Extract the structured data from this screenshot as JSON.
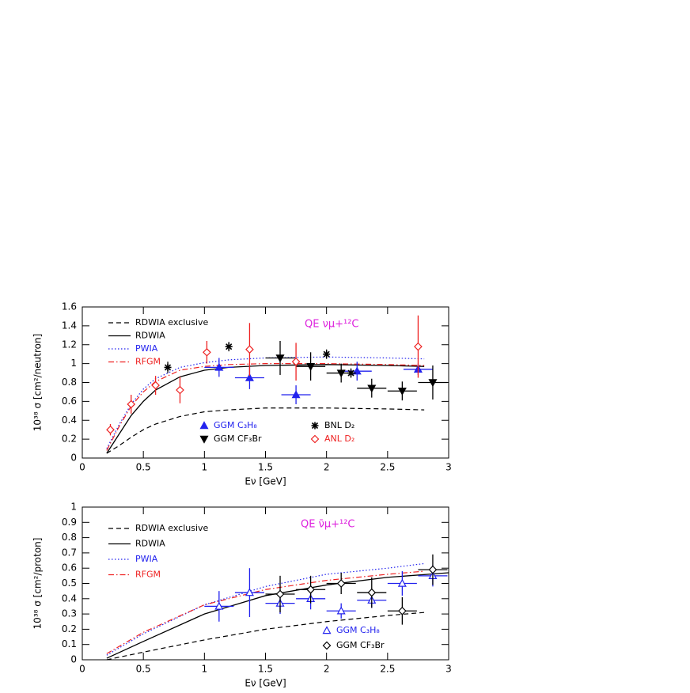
{
  "chart_data": [
    {
      "type": "line",
      "annotation": "QE νμ+¹²C",
      "xlabel": "Eν [GeV]",
      "ylabel": "10³⁸ σ [cm²/neutron]",
      "xlim": [
        0,
        3
      ],
      "ylim": [
        0,
        1.6
      ],
      "xticks": [
        0,
        0.5,
        1,
        1.5,
        2,
        2.5,
        3
      ],
      "yticks": [
        0,
        0.2,
        0.4,
        0.6,
        0.8,
        1,
        1.2,
        1.4,
        1.6
      ],
      "series": [
        {
          "name": "RDWIA exclusive",
          "kind": "line",
          "style": "dashed",
          "color": "#000000",
          "x": [
            0.2,
            0.3,
            0.4,
            0.5,
            0.6,
            0.8,
            1.0,
            1.2,
            1.5,
            2.0,
            2.5,
            2.8
          ],
          "values": [
            0.05,
            0.13,
            0.22,
            0.3,
            0.36,
            0.44,
            0.49,
            0.51,
            0.53,
            0.53,
            0.52,
            0.51
          ]
        },
        {
          "name": "RDWIA",
          "kind": "line",
          "style": "solid",
          "color": "#000000",
          "x": [
            0.2,
            0.3,
            0.4,
            0.5,
            0.6,
            0.8,
            1.0,
            1.2,
            1.5,
            2.0,
            2.5,
            2.8
          ],
          "values": [
            0.05,
            0.25,
            0.45,
            0.6,
            0.72,
            0.86,
            0.93,
            0.96,
            0.98,
            0.99,
            0.98,
            0.97
          ]
        },
        {
          "name": "PWIA",
          "kind": "line",
          "style": "dotted",
          "color": "#2222ee",
          "x": [
            0.2,
            0.3,
            0.4,
            0.5,
            0.6,
            0.8,
            1.0,
            1.2,
            1.5,
            2.0,
            2.5,
            2.8
          ],
          "values": [
            0.1,
            0.35,
            0.57,
            0.73,
            0.84,
            0.96,
            1.01,
            1.04,
            1.06,
            1.07,
            1.06,
            1.05
          ]
        },
        {
          "name": "RFGM",
          "kind": "line",
          "style": "dashdot",
          "color": "#ee2222",
          "x": [
            0.2,
            0.3,
            0.4,
            0.5,
            0.6,
            0.8,
            1.0,
            1.2,
            1.5,
            2.0,
            2.5,
            2.8
          ],
          "values": [
            0.08,
            0.33,
            0.55,
            0.7,
            0.81,
            0.93,
            0.97,
            0.99,
            1.0,
            1.0,
            0.99,
            0.98
          ]
        },
        {
          "name": "GGM C₃H₈",
          "kind": "points",
          "marker": "triangle-up-filled",
          "color": "#2222ee",
          "x": [
            1.12,
            1.37,
            1.75,
            2.25,
            2.75
          ],
          "values": [
            0.96,
            0.85,
            0.67,
            0.92,
            0.94
          ],
          "errors": [
            0.1,
            0.12,
            0.1,
            0.1,
            0.06
          ],
          "xerrors": [
            0.12,
            0.12,
            0.12,
            0.12,
            0.12
          ]
        },
        {
          "name": "GGM CF₃Br",
          "kind": "points",
          "marker": "triangle-down-filled",
          "color": "#000000",
          "x": [
            1.62,
            1.87,
            2.12,
            2.37,
            2.62,
            2.87
          ],
          "values": [
            1.06,
            0.97,
            0.9,
            0.74,
            0.71,
            0.8
          ],
          "errors": [
            0.18,
            0.15,
            0.1,
            0.1,
            0.1,
            0.18
          ],
          "xerrors": [
            0.12,
            0.12,
            0.12,
            0.12,
            0.12,
            0.12
          ]
        },
        {
          "name": "BNL D₂",
          "kind": "points",
          "marker": "star",
          "color": "#000000",
          "x": [
            0.7,
            1.2,
            2.0,
            2.2
          ],
          "values": [
            0.96,
            1.18,
            1.1,
            0.9
          ],
          "errors": [
            0.06,
            0.05,
            0.05,
            0.05
          ]
        },
        {
          "name": "ANL D₂",
          "kind": "points",
          "marker": "diamond-open",
          "color": "#ee2222",
          "x": [
            0.23,
            0.4,
            0.6,
            0.8,
            1.02,
            1.37,
            1.75,
            2.75
          ],
          "values": [
            0.3,
            0.57,
            0.77,
            0.72,
            1.12,
            1.15,
            1.02,
            1.18
          ],
          "errors": [
            0.06,
            0.1,
            0.1,
            0.14,
            0.12,
            0.28,
            0.2,
            0.33
          ]
        }
      ]
    },
    {
      "type": "line",
      "annotation": "QE ν̄μ+¹²C",
      "xlabel": "Eν [GeV]",
      "ylabel": "10³⁸ σ [cm²/proton]",
      "xlim": [
        0,
        3
      ],
      "ylim": [
        0,
        1
      ],
      "xticks": [
        0,
        0.5,
        1,
        1.5,
        2,
        2.5,
        3
      ],
      "yticks": [
        0,
        0.1,
        0.2,
        0.3,
        0.4,
        0.5,
        0.6,
        0.7,
        0.8,
        0.9,
        1
      ],
      "series": [
        {
          "name": "RDWIA exclusive",
          "kind": "line",
          "style": "dashed",
          "color": "#000000",
          "x": [
            0.2,
            0.5,
            1.0,
            1.5,
            2.0,
            2.5,
            2.8
          ],
          "values": [
            0.0,
            0.05,
            0.13,
            0.2,
            0.25,
            0.29,
            0.31
          ]
        },
        {
          "name": "RDWIA",
          "kind": "line",
          "style": "solid",
          "color": "#000000",
          "x": [
            0.2,
            0.5,
            1.0,
            1.5,
            2.0,
            2.5,
            3.0
          ],
          "values": [
            0.01,
            0.12,
            0.3,
            0.42,
            0.49,
            0.54,
            0.57
          ]
        },
        {
          "name": "PWIA",
          "kind": "line",
          "style": "dotted",
          "color": "#2222ee",
          "x": [
            0.2,
            0.5,
            1.0,
            1.5,
            2.0,
            2.5,
            2.8
          ],
          "values": [
            0.03,
            0.17,
            0.36,
            0.48,
            0.56,
            0.6,
            0.63
          ]
        },
        {
          "name": "RFGM",
          "kind": "line",
          "style": "dashdot",
          "color": "#ee2222",
          "x": [
            0.2,
            0.5,
            1.0,
            1.5,
            2.0,
            2.5,
            2.8
          ],
          "values": [
            0.04,
            0.18,
            0.36,
            0.46,
            0.52,
            0.56,
            0.58
          ]
        },
        {
          "name": "GGM C₃H₈",
          "kind": "points",
          "marker": "triangle-up-open",
          "color": "#2222ee",
          "x": [
            1.12,
            1.37,
            1.62,
            1.87,
            2.12,
            2.37,
            2.62,
            2.87
          ],
          "values": [
            0.35,
            0.44,
            0.37,
            0.4,
            0.32,
            0.39,
            0.5,
            0.55
          ],
          "errors": [
            0.1,
            0.16,
            0.07,
            0.07,
            0.05,
            0.05,
            0.08,
            0.07
          ],
          "xerrors": [
            0.12,
            0.12,
            0.12,
            0.12,
            0.12,
            0.12,
            0.12,
            0.12
          ]
        },
        {
          "name": "GGM CF₃Br",
          "kind": "points",
          "marker": "diamond-open",
          "color": "#000000",
          "x": [
            1.62,
            1.87,
            2.12,
            2.37,
            2.62,
            2.87
          ],
          "values": [
            0.43,
            0.46,
            0.5,
            0.44,
            0.32,
            0.59
          ],
          "errors": [
            0.12,
            0.09,
            0.07,
            0.1,
            0.09,
            0.1
          ],
          "xerrors": [
            0.12,
            0.12,
            0.12,
            0.12,
            0.12,
            0.12
          ]
        }
      ]
    }
  ]
}
